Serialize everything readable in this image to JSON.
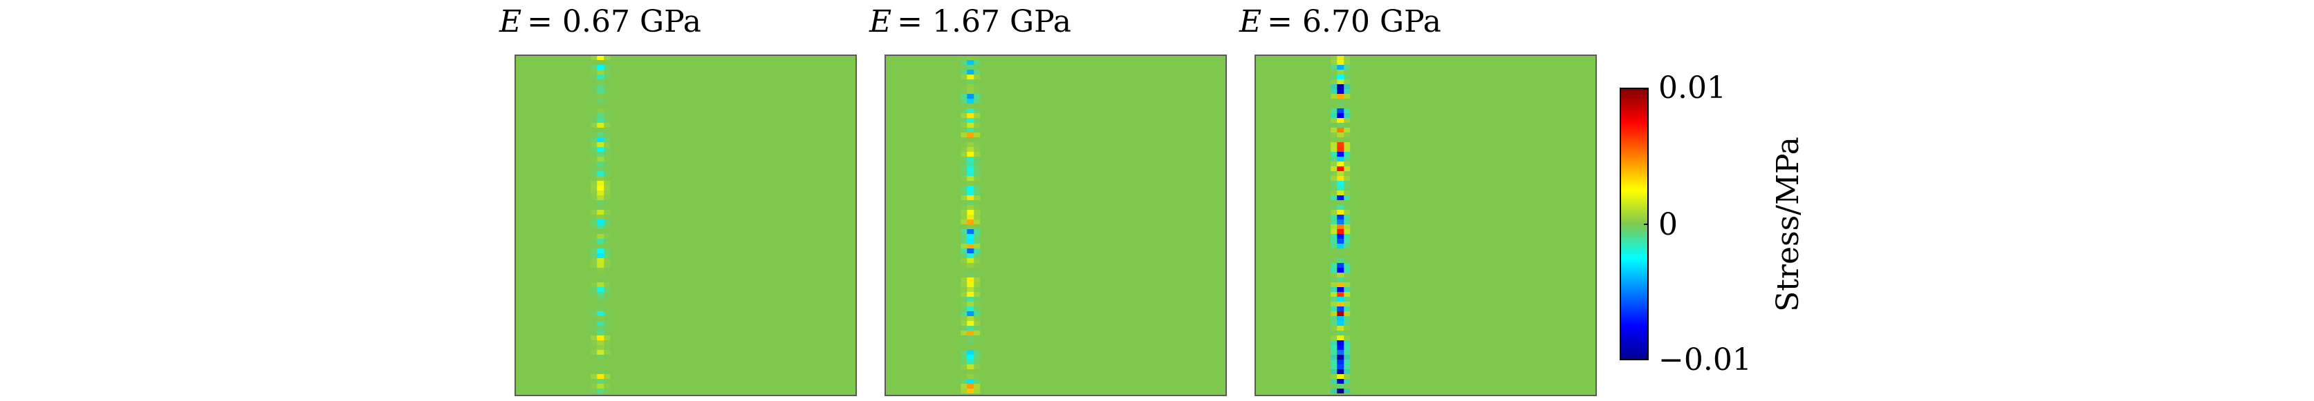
{
  "chart_data": {
    "type": "heatmap",
    "colormap": "jet",
    "background_value": 0,
    "colorbar": {
      "label": "Stress/MPa",
      "range": [
        -0.01,
        0.01
      ],
      "ticks": [
        {
          "value": 0.01,
          "label": "0.01"
        },
        {
          "value": 0,
          "label": "0"
        },
        {
          "value": -0.01,
          "label": "−0.01"
        }
      ]
    },
    "panels": [
      {
        "title_symbol": "E",
        "title_value": "= 0.67 GPa",
        "elastic_modulus_gpa": 0.67,
        "line_position_fraction": 0.25,
        "peak_stress": 0.003
      },
      {
        "title_symbol": "E",
        "title_value": "= 1.67 GPa",
        "elastic_modulus_gpa": 1.67,
        "line_position_fraction": 0.25,
        "peak_stress": 0.006
      },
      {
        "title_symbol": "E",
        "title_value": "= 6.70 GPa",
        "elastic_modulus_gpa": 6.7,
        "line_position_fraction": 0.25,
        "peak_stress": 0.01
      }
    ]
  }
}
